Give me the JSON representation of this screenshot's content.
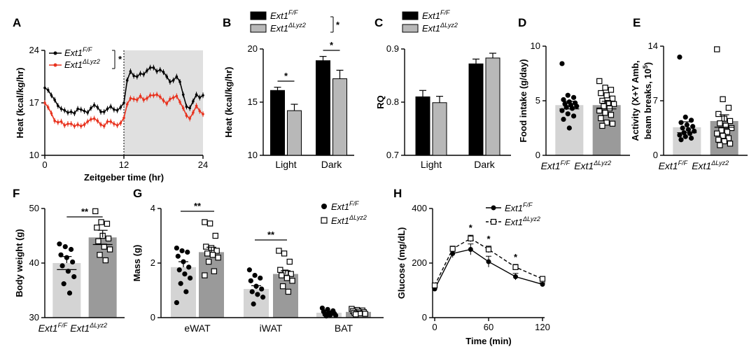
{
  "panels": {
    "A": {
      "label": "A"
    },
    "B": {
      "label": "B"
    },
    "C": {
      "label": "C"
    },
    "D": {
      "label": "D"
    },
    "E": {
      "label": "E"
    },
    "F": {
      "label": "F"
    },
    "G": {
      "label": "G"
    },
    "H": {
      "label": "H"
    }
  },
  "groups": {
    "control": {
      "base": "Ext1",
      "sup": "F/F",
      "color": "#000000",
      "bar_color": "#d4d4d4"
    },
    "ko": {
      "base": "Ext1",
      "sup": "ΔLyz2",
      "color": "#e8321e",
      "bar_color": "#9a9a9a"
    }
  },
  "colors": {
    "dark_phase_shade": "#e0e0e0",
    "bar_black": "#000000",
    "bar_grey": "#b8b8b8"
  },
  "chart_data": [
    {
      "id": "A",
      "type": "line",
      "xlabel": "Zeitgeber time (hr)",
      "ylabel": "Heat (kcal/kg/hr)",
      "xlim": [
        0,
        24
      ],
      "ylim": [
        10,
        24
      ],
      "xticks": [
        "0",
        "12",
        "24"
      ],
      "yticks": [
        "10",
        "17",
        "24"
      ],
      "dark_phase": [
        12,
        24
      ],
      "significance": "*",
      "series": [
        {
          "group": "control",
          "x": [
            0,
            0.5,
            1,
            1.5,
            2,
            2.5,
            3,
            3.5,
            4,
            4.5,
            5,
            5.5,
            6,
            6.5,
            7,
            7.5,
            8,
            8.5,
            9,
            9.5,
            10,
            10.5,
            11,
            11.5,
            12,
            12.5,
            13,
            13.5,
            14,
            14.5,
            15,
            15.5,
            16,
            16.5,
            17,
            17.5,
            18,
            18.5,
            19,
            19.5,
            20,
            20.5,
            21,
            21.5,
            22,
            22.5,
            23,
            23.5,
            24
          ],
          "y": [
            19,
            18.7,
            18,
            17.4,
            16.6,
            16.2,
            16,
            15.7,
            15.8,
            15.6,
            16.2,
            16.1,
            15.9,
            15.7,
            16.3,
            16.7,
            16.4,
            15.8,
            15.8,
            16.2,
            16.5,
            16.1,
            16,
            16.4,
            17,
            20,
            21.2,
            20.6,
            20.5,
            20.9,
            20.8,
            21.3,
            21.7,
            21.7,
            21.2,
            21.4,
            21.1,
            20.5,
            19.8,
            20,
            20.5,
            19.8,
            18.1,
            16.5,
            16.3,
            17.2,
            18.1,
            17.7,
            18
          ]
        },
        {
          "group": "ko",
          "x": [
            0,
            0.5,
            1,
            1.5,
            2,
            2.5,
            3,
            3.5,
            4,
            4.5,
            5,
            5.5,
            6,
            6.5,
            7,
            7.5,
            8,
            8.5,
            9,
            9.5,
            10,
            10.5,
            11,
            11.5,
            12,
            12.5,
            13,
            13.5,
            14,
            14.5,
            15,
            15.5,
            16,
            16.5,
            17,
            17.5,
            18,
            18.5,
            19,
            19.5,
            20,
            20.5,
            21,
            21.5,
            22,
            22.5,
            23,
            23.5,
            24
          ],
          "y": [
            17,
            16.4,
            15.6,
            14.6,
            14.4,
            14.5,
            14,
            14.2,
            14.2,
            13.9,
            14.1,
            13.9,
            14.1,
            14.5,
            14.8,
            14.9,
            14.6,
            14.1,
            13.9,
            14.5,
            14.5,
            14.2,
            14,
            14.3,
            15,
            16.8,
            17.6,
            17.5,
            17.4,
            17.9,
            17.4,
            17.6,
            18,
            18,
            18.1,
            17.8,
            17.3,
            16.9,
            17.5,
            17.7,
            17.9,
            17.1,
            16.3,
            15.3,
            14.9,
            15.7,
            16.6,
            15.9,
            15.5
          ]
        }
      ]
    },
    {
      "id": "B",
      "type": "bar",
      "ylabel": "Heat (kcal/kg/hr)",
      "categories": [
        "Light",
        "Dark"
      ],
      "ylim": [
        10,
        20
      ],
      "yticks": [
        "10",
        "15",
        "20"
      ],
      "series": [
        {
          "group": "control",
          "values": [
            16.1,
            18.9
          ],
          "err": [
            0.3,
            0.4
          ]
        },
        {
          "group": "ko",
          "values": [
            14.2,
            17.2
          ],
          "err": [
            0.6,
            0.8
          ]
        }
      ],
      "significance": {
        "light": "*",
        "dark": "*",
        "legend": "*"
      }
    },
    {
      "id": "C",
      "type": "bar",
      "ylabel": "RQ",
      "categories": [
        "Light",
        "Dark"
      ],
      "ylim": [
        0.7,
        0.9
      ],
      "yticks": [
        "0.7",
        "0.8",
        "0.9"
      ],
      "series": [
        {
          "group": "control",
          "values": [
            0.81,
            0.872
          ],
          "err": [
            0.012,
            0.009
          ]
        },
        {
          "group": "ko",
          "values": [
            0.799,
            0.883
          ],
          "err": [
            0.012,
            0.009
          ]
        }
      ]
    },
    {
      "id": "D",
      "type": "bar",
      "ylabel": "Food intake (g/day)",
      "ylim": [
        0,
        10
      ],
      "yticks": [
        "0",
        "5",
        "10"
      ],
      "bars": [
        {
          "group": "control",
          "value": 4.6,
          "err": 0.35,
          "points": [
            8.4,
            5.5,
            5.3,
            5.1,
            4.9,
            4.8,
            4.7,
            4.6,
            4.5,
            4.4,
            4.3,
            4.1,
            3.8,
            3.6,
            3.3,
            2.5
          ]
        },
        {
          "group": "ko",
          "value": 4.6,
          "err": 0.35,
          "points": [
            6.8,
            6.2,
            6.0,
            5.7,
            5.5,
            5.2,
            5.0,
            4.8,
            4.7,
            4.5,
            4.3,
            4.1,
            3.9,
            3.7,
            3.4,
            3.0,
            2.9,
            2.7
          ]
        }
      ]
    },
    {
      "id": "E",
      "type": "bar",
      "ylabel_line1": "Activity (X+Y Amb,",
      "ylabel_line2": "beam breaks, 10",
      "ylabel_sup": "5",
      "ylabel_close": ")",
      "ylim": [
        0,
        14
      ],
      "yticks": [
        "0",
        "7",
        "14"
      ],
      "bars": [
        {
          "group": "control",
          "value": 3.6,
          "err": 0.7,
          "points": [
            12.6,
            4.9,
            4.5,
            4.2,
            3.9,
            3.7,
            3.5,
            3.3,
            3.1,
            2.9,
            2.8,
            2.6,
            2.4,
            2.2,
            2.0
          ]
        },
        {
          "group": "ko",
          "value": 4.4,
          "err": 0.8,
          "points": [
            13.6,
            7.2,
            6.1,
            5.3,
            4.7,
            4.4,
            4.1,
            3.8,
            3.5,
            3.2,
            3.0,
            2.8,
            2.5,
            2.2,
            2.0,
            1.8,
            1.5,
            1.3
          ]
        }
      ]
    },
    {
      "id": "F",
      "type": "bar",
      "ylabel": "Body weight (g)",
      "ylim": [
        30,
        50
      ],
      "yticks": [
        "30",
        "40",
        "50"
      ],
      "significance": "**",
      "bars": [
        {
          "group": "control",
          "value": 40.0,
          "err": 1.2,
          "points": [
            43.5,
            43.0,
            42.5,
            41.5,
            41.0,
            40.2,
            39.5,
            38.5,
            37.5,
            36.2,
            34.5
          ]
        },
        {
          "group": "ko",
          "value": 44.7,
          "err": 1.3,
          "points": [
            49.5,
            47.5,
            47.2,
            46.5,
            45.0,
            44.5,
            44.0,
            43.0,
            42.5,
            41.5,
            40.5
          ]
        }
      ]
    },
    {
      "id": "G",
      "type": "bar",
      "ylabel": "Mass (g)",
      "categories": [
        "eWAT",
        "iWAT",
        "BAT"
      ],
      "ylim": [
        0,
        4
      ],
      "yticks": [
        "0",
        "2",
        "4"
      ],
      "bars": [
        {
          "group": "control",
          "value": 1.85,
          "err": 0.2,
          "points": [
            2.55,
            2.45,
            2.4,
            2.25,
            2.05,
            1.85,
            1.75,
            1.6,
            1.45,
            1.25,
            0.95,
            0.55
          ]
        },
        {
          "group": "ko",
          "value": 2.4,
          "err": 0.18,
          "points": [
            3.5,
            3.45,
            3.0,
            2.6,
            2.55,
            2.45,
            2.35,
            2.3,
            2.2,
            2.05,
            1.7,
            1.55
          ]
        },
        {
          "group": "control",
          "value": 1.05,
          "err": 0.12,
          "points": [
            1.75,
            1.55,
            1.45,
            1.35,
            1.15,
            1.05,
            0.95,
            0.85,
            0.75,
            0.5
          ]
        },
        {
          "group": "ko",
          "value": 1.6,
          "err": 0.12,
          "points": [
            2.45,
            2.35,
            2.05,
            1.75,
            1.65,
            1.6,
            1.55,
            1.45,
            1.35,
            1.15,
            0.95
          ]
        },
        {
          "group": "control",
          "value": 0.18,
          "err": 0.02,
          "points": [
            0.35,
            0.3,
            0.25,
            0.22,
            0.18,
            0.15,
            0.12,
            0.1,
            0.08,
            0.06
          ]
        },
        {
          "group": "ko",
          "value": 0.21,
          "err": 0.02,
          "points": [
            0.32,
            0.28,
            0.26,
            0.24,
            0.22,
            0.2,
            0.18,
            0.16,
            0.14,
            0.12
          ]
        }
      ],
      "significance": {
        "eWAT": "**",
        "iWAT": "**"
      }
    },
    {
      "id": "H",
      "type": "line",
      "xlabel": "Time (min)",
      "ylabel": "Glucose (mg/dL)",
      "xlim": [
        0,
        120
      ],
      "ylim": [
        0,
        400
      ],
      "xticks": [
        "0",
        "60",
        "120"
      ],
      "yticks": [
        "0",
        "200",
        "400"
      ],
      "x": [
        0,
        20,
        40,
        60,
        90,
        120
      ],
      "series": [
        {
          "group": "control",
          "values": [
            105,
            235,
            250,
            205,
            150,
            122
          ],
          "err": [
            8,
            15,
            20,
            20,
            12,
            6
          ]
        },
        {
          "group": "ko",
          "values": [
            118,
            252,
            290,
            250,
            185,
            142
          ],
          "err": [
            8,
            10,
            12,
            12,
            10,
            8
          ]
        }
      ],
      "significance": [
        "",
        "",
        "*",
        "*",
        "*",
        ""
      ]
    }
  ]
}
